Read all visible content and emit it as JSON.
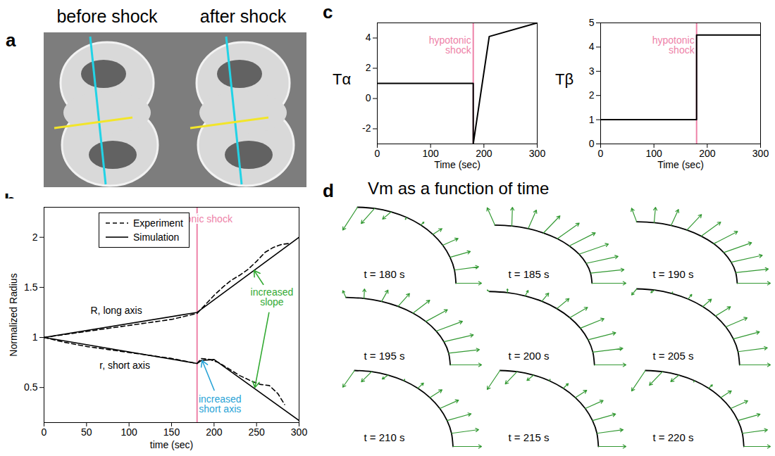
{
  "panel_a": {
    "panel_label": "a",
    "titles": [
      "before shock",
      "after shock"
    ]
  },
  "chart_data": [
    {
      "panel_label": "b",
      "type": "line",
      "x_label": "time (sec)",
      "y_label": "Normalized Radius",
      "xlim": [
        0,
        300
      ],
      "xticks": [
        0,
        50,
        100,
        150,
        200,
        250,
        300
      ],
      "ylim": [
        0.15,
        2.3
      ],
      "yticks": [
        0.5,
        1,
        1.5,
        2
      ],
      "legend": "top-left",
      "series": [
        {
          "name": "Experiment",
          "color": "#000000",
          "line_style": "dashed",
          "x": [
            0,
            25,
            50,
            75,
            100,
            125,
            150,
            180,
            190,
            200,
            210,
            220,
            230,
            240,
            250,
            260,
            270,
            280,
            290
          ],
          "values": [
            1,
            1.03,
            1.06,
            1.09,
            1.12,
            1.15,
            1.18,
            1.24,
            1.33,
            1.42,
            1.5,
            1.57,
            1.62,
            1.68,
            1.76,
            1.85,
            1.9,
            1.93,
            1.94
          ]
        },
        {
          "name": "Experiment",
          "color": "#000000",
          "line_style": "dashed",
          "x": [
            0,
            25,
            50,
            75,
            100,
            125,
            150,
            180,
            185,
            195,
            205,
            215,
            230,
            245,
            255,
            265,
            275,
            283
          ],
          "values": [
            1,
            0.95,
            0.91,
            0.88,
            0.85,
            0.82,
            0.79,
            0.74,
            0.79,
            0.78,
            0.75,
            0.7,
            0.62,
            0.56,
            0.53,
            0.52,
            0.44,
            0.33
          ]
        },
        {
          "name": "Simulation",
          "color": "#000000",
          "line_style": "solid",
          "x": [
            0,
            180,
            300
          ],
          "values": [
            1,
            1.25,
            2.0
          ]
        },
        {
          "name": "Simulation",
          "color": "#000000",
          "line_style": "solid",
          "x": [
            0,
            180,
            185,
            200,
            300
          ],
          "values": [
            1,
            0.74,
            0.77,
            0.78,
            0.17
          ]
        }
      ],
      "vline": {
        "x": 180,
        "label": "hypotonic shock",
        "color": "#ee82a8"
      },
      "annotations": [
        {
          "text": "R, long axis",
          "x": 85,
          "y": 1.27,
          "color": "#000000",
          "arrows_to": []
        },
        {
          "text": "r, short axis",
          "x": 95,
          "y": 0.72,
          "color": "#000000",
          "arrows_to": []
        },
        {
          "text": "increased slope",
          "x": 268,
          "y": 1.4,
          "color": "#33aa33",
          "arrows_to": [
            [
              247,
              1.67
            ],
            [
              248,
              0.5
            ]
          ]
        },
        {
          "text": "increased short axis",
          "x": 207,
          "y": 0.33,
          "color": "#29a3d6",
          "arrows_to": [
            [
              186,
              0.77
            ]
          ]
        }
      ]
    },
    {
      "panel_label": "c",
      "type": "line",
      "x_label": "Time (sec)",
      "y_label": "Tα",
      "xlim": [
        0,
        300
      ],
      "xticks": [
        0,
        100,
        200,
        300
      ],
      "ylim": [
        -3,
        5
      ],
      "yticks": [
        -2,
        0,
        2,
        4
      ],
      "series": [
        {
          "name": "Tα",
          "color": "#000000",
          "line_style": "solid",
          "x": [
            0,
            180,
            180,
            210,
            300
          ],
          "values": [
            1,
            1,
            -3,
            4.1,
            5
          ]
        }
      ],
      "vline": {
        "x": 180,
        "label": "hypotonic shock",
        "color": "#ee82a8"
      }
    },
    {
      "type": "line",
      "x_label": "Time (sec)",
      "y_label": "Tβ",
      "xlim": [
        0,
        300
      ],
      "xticks": [
        0,
        100,
        200,
        300
      ],
      "ylim": [
        0,
        5
      ],
      "yticks": [
        0,
        1,
        2,
        3,
        4,
        5
      ],
      "series": [
        {
          "name": "Tβ",
          "color": "#000000",
          "line_style": "solid",
          "x": [
            0,
            180,
            180,
            300
          ],
          "values": [
            1,
            1,
            4.5,
            4.5
          ]
        }
      ],
      "vline": {
        "x": 180,
        "label": "hypotonic shock",
        "color": "#ee82a8"
      }
    },
    {
      "panel_label": "d",
      "type": "vector_field",
      "title": "Vm as a function of time",
      "tick_labels": false,
      "color": "#339933",
      "arc_angles": [
        90,
        80,
        70,
        60,
        50,
        40,
        30,
        20,
        10,
        0
      ],
      "panels": [
        {
          "label": "t = 180 s",
          "normal": [
            -0.3,
            -0.22,
            -0.12,
            -0.03,
            0.05,
            0.12,
            0.18,
            0.22,
            0.25,
            0.26
          ],
          "tangential": [
            -0.15,
            -0.1,
            -0.05,
            0,
            0,
            0,
            0,
            0,
            0,
            0
          ]
        },
        {
          "label": "t = 185 s",
          "normal": [
            0.3,
            0.32,
            0.33,
            0.34,
            0.35,
            0.35,
            0.35,
            0.35,
            0.35,
            0.35
          ],
          "tangential": [
            -0.08,
            -0.05,
            -0.03,
            0,
            0,
            0,
            0,
            0,
            0,
            0
          ]
        },
        {
          "label": "t = 190 s",
          "normal": [
            0.22,
            0.25,
            0.27,
            0.29,
            0.3,
            0.31,
            0.32,
            0.33,
            0.33,
            0.33
          ],
          "tangential": [
            -0.05,
            -0.03,
            -0.02,
            0,
            0,
            0,
            0,
            0,
            0,
            0
          ]
        },
        {
          "label": "t = 195 s",
          "normal": [
            0.1,
            0.14,
            0.18,
            0.22,
            0.25,
            0.27,
            0.29,
            0.3,
            0.3,
            0.3
          ],
          "tangential": [
            -0.03,
            -0.02,
            0,
            0,
            0,
            0,
            0,
            0,
            0,
            0
          ]
        },
        {
          "label": "t = 200 s",
          "normal": [
            0.02,
            0.05,
            0.08,
            0.13,
            0.18,
            0.22,
            0.26,
            0.28,
            0.29,
            0.3
          ],
          "tangential": [
            -0.02,
            -0.01,
            0,
            0,
            0,
            0,
            0,
            0,
            0,
            0
          ]
        },
        {
          "label": "t = 205 s",
          "normal": [
            -0.08,
            -0.04,
            0.02,
            0.07,
            0.13,
            0.19,
            0.24,
            0.27,
            0.29,
            0.3
          ],
          "tangential": [
            -0.05,
            -0.03,
            0,
            0,
            0,
            0,
            0,
            0,
            0,
            0
          ]
        },
        {
          "label": "t = 210 s",
          "normal": [
            -0.22,
            -0.15,
            -0.07,
            0.02,
            0.09,
            0.16,
            0.22,
            0.26,
            0.28,
            0.29
          ],
          "tangential": [
            -0.12,
            -0.08,
            -0.04,
            0,
            0,
            0,
            0,
            0,
            0,
            0
          ]
        },
        {
          "label": "t = 215 s",
          "normal": [
            -0.25,
            -0.18,
            -0.09,
            0.02,
            0.08,
            0.15,
            0.21,
            0.25,
            0.27,
            0.28
          ],
          "tangential": [
            -0.13,
            -0.09,
            -0.04,
            0,
            0,
            0,
            0,
            0,
            0,
            0
          ]
        },
        {
          "label": "t = 220 s",
          "normal": [
            -0.27,
            -0.2,
            -0.11,
            -0.02,
            0.06,
            0.14,
            0.2,
            0.24,
            0.26,
            0.27
          ],
          "tangential": [
            -0.14,
            -0.1,
            -0.05,
            0,
            0,
            0,
            0,
            0,
            0,
            0
          ]
        }
      ]
    }
  ]
}
